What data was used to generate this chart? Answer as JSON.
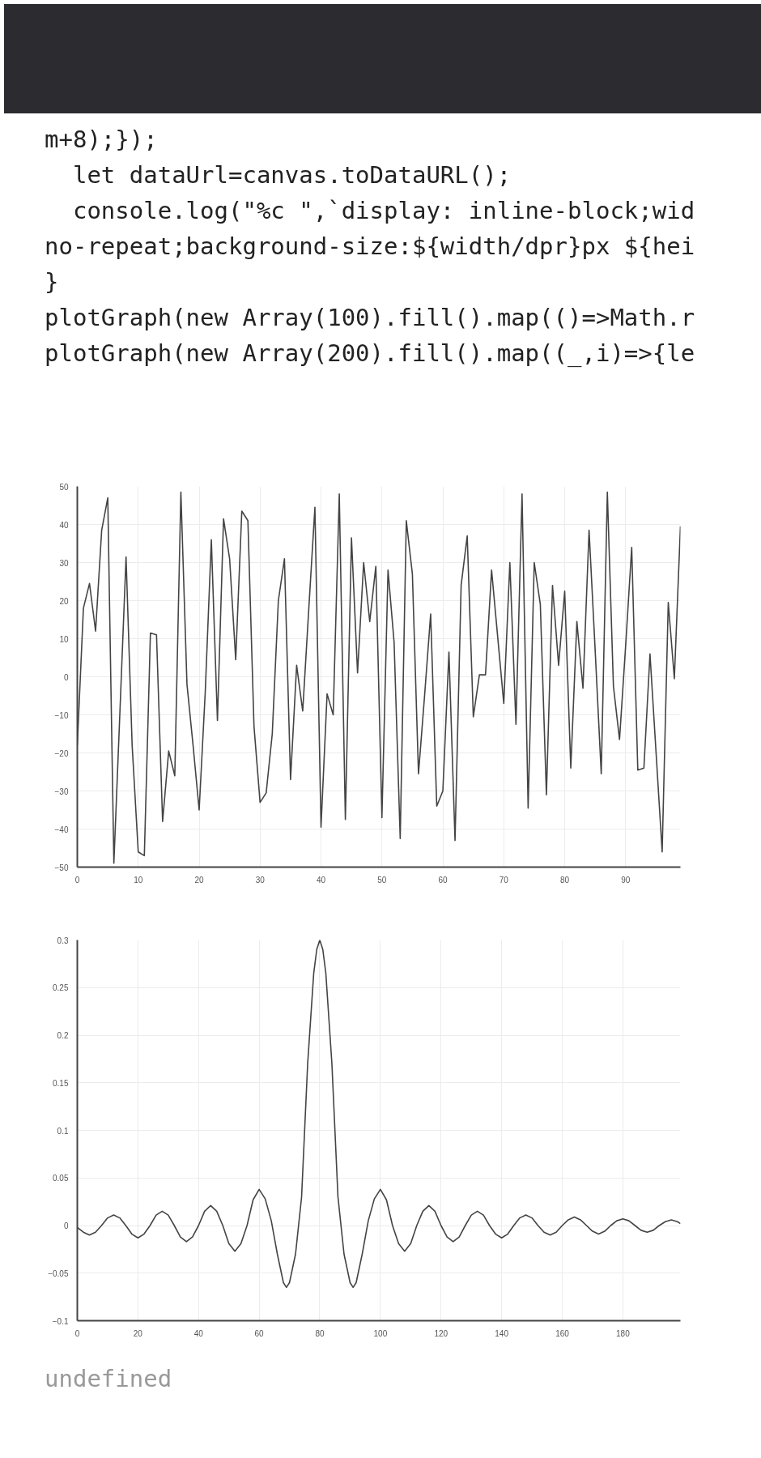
{
  "chart_data": [
    {
      "type": "line",
      "annotations": [
        "m+8);});",
        "  let dataUrl=canvas.toDataURL();",
        "  console.log(\"%c \",`display: inline-block;wid",
        "no-repeat;background-size:${width/dpr}px ${hei",
        "}",
        "plotGraph(new Array(100).fill().map(()=>Math.r",
        "plotGraph(new Array(200).fill().map((_,i)=>{le"
      ],
      "x": [
        0,
        1,
        2,
        3,
        4,
        5,
        6,
        7,
        8,
        9,
        10,
        11,
        12,
        13,
        14,
        15,
        16,
        17,
        18,
        19,
        20,
        21,
        22,
        23,
        24,
        25,
        26,
        27,
        28,
        29,
        30,
        31,
        32,
        33,
        34,
        35,
        36,
        37,
        38,
        39,
        40,
        41,
        42,
        43,
        44,
        45,
        46,
        47,
        48,
        49,
        50,
        51,
        52,
        53,
        54,
        55,
        56,
        57,
        58,
        59,
        60,
        61,
        62,
        63,
        64,
        65,
        66,
        67,
        68,
        69,
        70,
        71,
        72,
        73,
        74,
        75,
        76,
        77,
        78,
        79,
        80,
        81,
        82,
        83,
        84,
        85,
        86,
        87,
        88,
        89,
        90,
        91,
        92,
        93,
        94,
        95,
        96,
        97,
        98,
        99
      ],
      "series": [
        {
          "color": "#444444",
          "values": [
            -18,
            18,
            24.5,
            12,
            38.5,
            47,
            -49,
            -9,
            31.5,
            -18,
            -46,
            -47,
            11.5,
            11,
            -38,
            -19.5,
            -26,
            48.5,
            -2,
            -18,
            -35,
            -4,
            36,
            -11.5,
            41.5,
            31,
            4.5,
            43.5,
            41,
            -13,
            -33,
            -30.5,
            -15,
            20,
            31,
            -27,
            3,
            -9,
            18,
            44.5,
            -39.5,
            -4.5,
            -10,
            48,
            -37.5,
            36.5,
            1,
            30,
            14.5,
            29,
            -37,
            28,
            9,
            -42.5,
            41,
            27,
            -25.5,
            -5,
            16.5,
            -34,
            -30,
            6.5,
            -43,
            24,
            37,
            -10.5,
            0.5,
            0.5,
            28,
            10.5,
            -7,
            30,
            -12.5,
            48,
            -34.5,
            30,
            19,
            -31,
            24,
            3,
            22.5,
            -24,
            14.5,
            -3,
            38.5,
            7,
            -25.5,
            48.5,
            -2.5,
            -16.5,
            8,
            34,
            -24.5,
            -24,
            6,
            -20,
            -46,
            19.5,
            -0.5,
            39.5
          ]
        }
      ],
      "xlim": [
        0,
        99
      ],
      "ylim": [
        -50,
        50
      ],
      "xticks": [
        0,
        10,
        20,
        30,
        40,
        50,
        60,
        70,
        80,
        90
      ],
      "yticks": [
        -50,
        -40,
        -30,
        -20,
        -10,
        0,
        10,
        20,
        30,
        40,
        50
      ],
      "grid": true
    },
    {
      "type": "line",
      "annotations": [
        "undefined"
      ],
      "x": [
        0,
        2,
        4,
        6,
        8,
        10,
        12,
        14,
        16,
        18,
        20,
        22,
        24,
        26,
        28,
        30,
        32,
        34,
        36,
        38,
        40,
        42,
        44,
        46,
        48,
        50,
        52,
        54,
        56,
        58,
        60,
        62,
        64,
        66,
        68,
        69,
        70,
        72,
        74,
        76,
        78,
        79,
        80,
        81,
        82,
        84,
        86,
        88,
        90,
        91,
        92,
        94,
        96,
        98,
        100,
        102,
        104,
        106,
        108,
        110,
        112,
        114,
        116,
        118,
        120,
        122,
        124,
        126,
        128,
        130,
        132,
        134,
        136,
        138,
        140,
        142,
        144,
        146,
        148,
        150,
        152,
        154,
        156,
        158,
        160,
        162,
        164,
        166,
        168,
        170,
        172,
        174,
        176,
        178,
        180,
        182,
        184,
        186,
        188,
        190,
        192,
        194,
        196,
        198,
        199
      ],
      "series": [
        {
          "color": "#444444",
          "values": [
            -0.002,
            -0.007,
            -0.01,
            -0.007,
            0,
            0.008,
            0.011,
            0.008,
            0,
            -0.009,
            -0.013,
            -0.009,
            0,
            0.011,
            0.015,
            0.011,
            0,
            -0.012,
            -0.017,
            -0.012,
            0,
            0.015,
            0.021,
            0.015,
            0,
            -0.019,
            -0.027,
            -0.019,
            0,
            0.027,
            0.038,
            0.028,
            0.005,
            -0.03,
            -0.06,
            -0.065,
            -0.06,
            -0.03,
            0.03,
            0.17,
            0.265,
            0.29,
            0.3,
            0.29,
            0.265,
            0.17,
            0.03,
            -0.03,
            -0.06,
            -0.065,
            -0.06,
            -0.03,
            0.005,
            0.028,
            0.038,
            0.027,
            0,
            -0.019,
            -0.027,
            -0.019,
            0,
            0.015,
            0.021,
            0.015,
            0,
            -0.012,
            -0.017,
            -0.012,
            0,
            0.011,
            0.015,
            0.011,
            0,
            -0.009,
            -0.013,
            -0.009,
            0,
            0.008,
            0.011,
            0.008,
            0,
            -0.007,
            -0.01,
            -0.007,
            0,
            0.006,
            0.009,
            0.006,
            0,
            -0.006,
            -0.009,
            -0.006,
            0,
            0.005,
            0.007,
            0.005,
            0,
            -0.005,
            -0.007,
            -0.005,
            0,
            0.004,
            0.006,
            0.004,
            0.002
          ]
        }
      ],
      "xlim": [
        0,
        199
      ],
      "ylim": [
        -0.1,
        0.3
      ],
      "xticks": [
        0,
        20,
        40,
        60,
        80,
        100,
        120,
        140,
        160,
        180
      ],
      "yticks": [
        -0.1,
        -0.05,
        0,
        0.05,
        0.1,
        0.15,
        0.2,
        0.25,
        0.3
      ],
      "grid": true
    }
  ]
}
